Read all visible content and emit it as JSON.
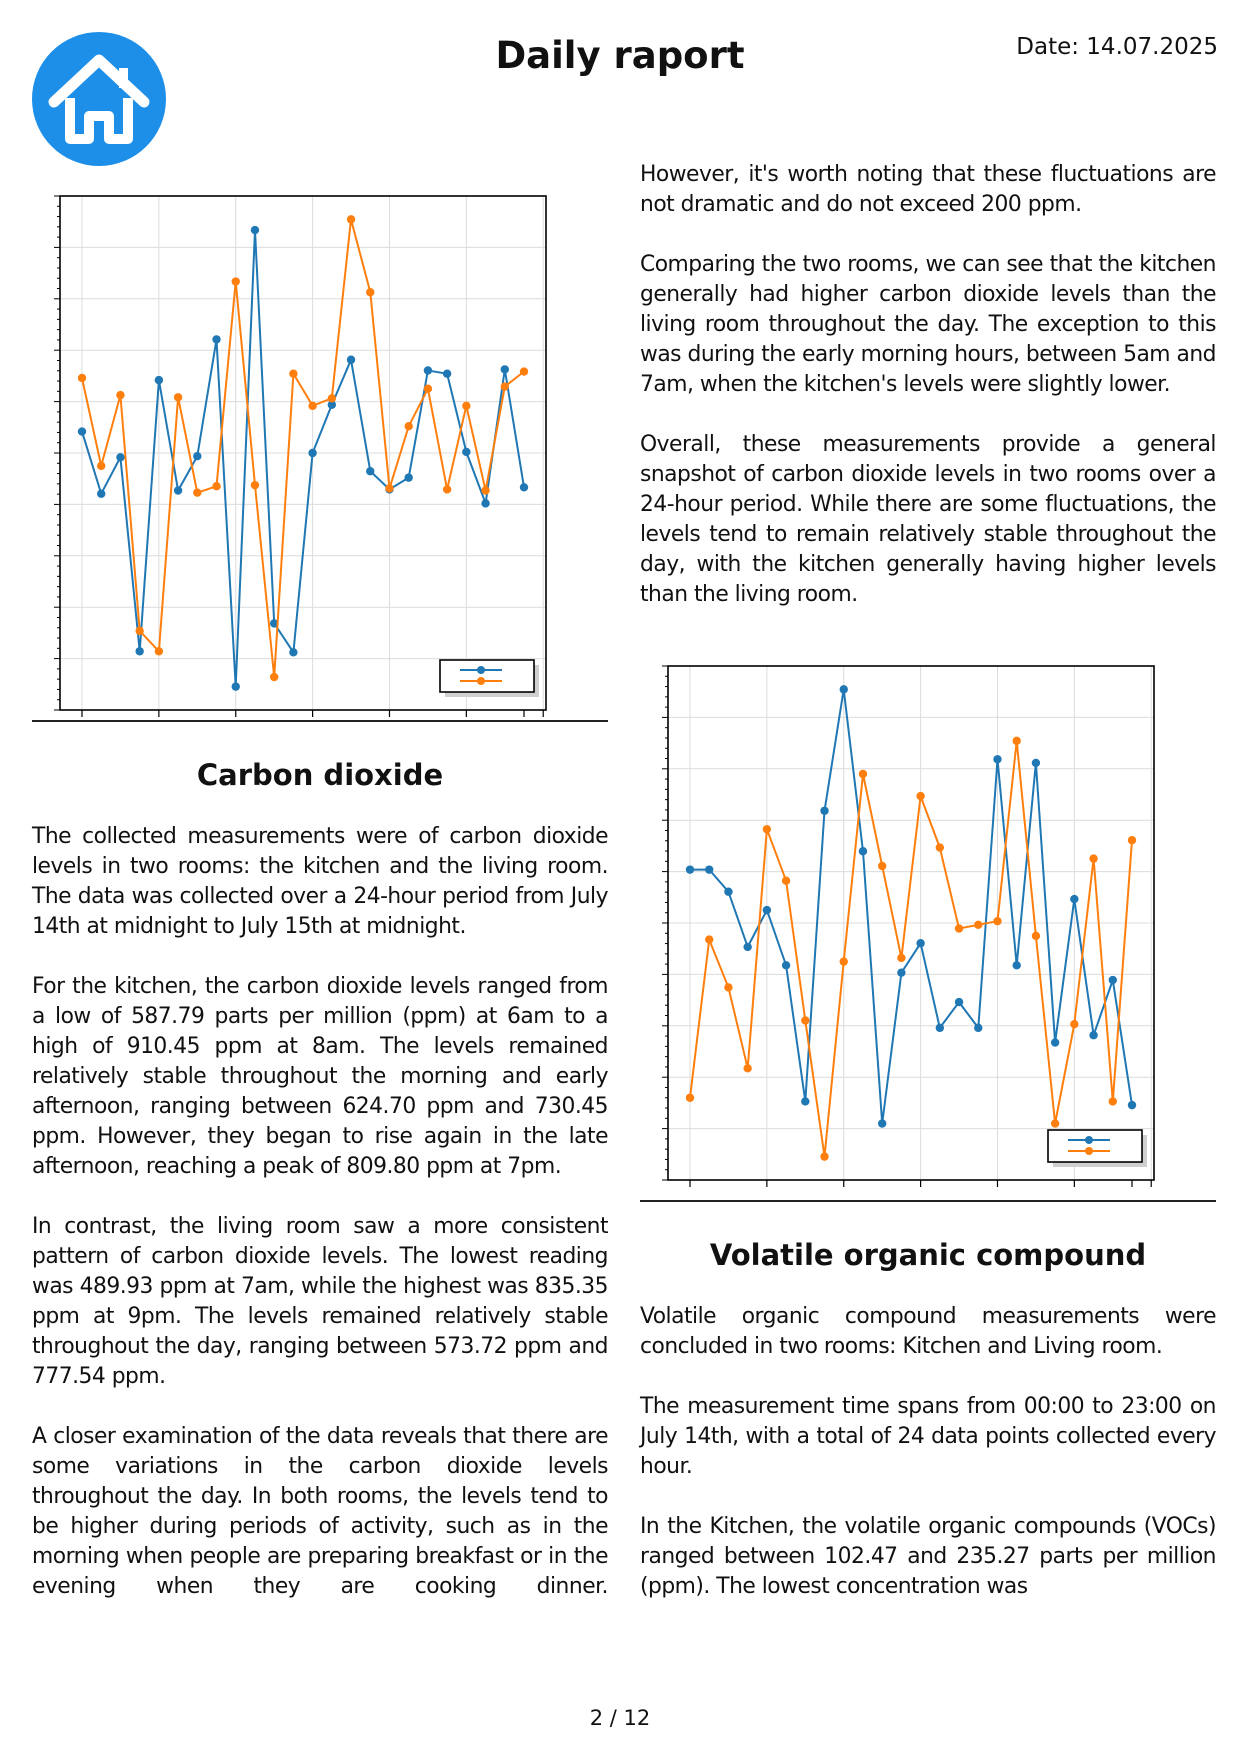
{
  "header": {
    "logo_icon": "house-icon",
    "logo_color": "#1e8fe8",
    "title": "Daily raport",
    "date": "Date: 14.07.2025"
  },
  "co2": {
    "heading": "Carbon dioxide",
    "paragraphs": [
      "The collected measurements were of carbon dioxide levels in two rooms: the kitchen and the living room. The data was collected over a 24-hour period from July 14th at midnight to July 15th at midnight.",
      "For the kitchen, the carbon dioxide levels ranged from a low of 587.79 parts per million (ppm) at 6am to a high of 910.45 ppm at 8am. The levels remained relatively stable throughout the morning and early afternoon, ranging between 624.70 ppm and 730.45 ppm. However, they began to rise again in the late afternoon, reaching a peak of 809.80 ppm at 7pm.",
      "In contrast, the living room saw a more consistent pattern of carbon dioxide levels. The lowest reading was 489.93 ppm at 7am, while the highest was 835.35 ppm at 9pm. The levels remained relatively stable throughout the day, ranging between 573.72 ppm and 777.54 ppm.",
      "A closer examination of the data reveals that there are some variations in the carbon dioxide levels throughout the day. In both rooms, the levels tend to be higher during periods of activity, such as in the morning when people are preparing breakfast or in the evening when they are cooking dinner."
    ],
    "continued_paragraphs": [
      "However, it's worth noting that these fluctuations are not dramatic and do not exceed 200 ppm.",
      "Comparing the two rooms, we can see that the kitchen generally had higher carbon dioxide levels than the living room throughout the day. The exception to this was during the early morning hours, between 5am and 7am, when the kitchen's levels were slightly lower.",
      "Overall, these measurements provide a general snapshot of carbon dioxide levels in two rooms over a 24-hour period. While there are some fluctuations, the levels tend to remain relatively stable throughout the day, with the kitchen generally having higher levels than the living room."
    ]
  },
  "voc": {
    "heading": "Volatile organic compound",
    "paragraphs": [
      "Volatile organic compound measurements were concluded in two rooms: Kitchen and Living room.",
      "The measurement time spans from 00:00 to 23:00 on July 14th, with a total of 24 data points collected every hour.",
      "In the Kitchen, the volatile organic compounds (VOCs) ranged between 102.47 and 235.27 parts per million (ppm). The lowest concentration was"
    ]
  },
  "footer": {
    "page": "2 / 12"
  },
  "chart_data": [
    {
      "type": "line",
      "grid": true,
      "legend_placement": "bottom-right",
      "series": [
        {
          "color": "#1f77b4",
          "values": [
            700,
            642,
            676,
            495,
            748,
            645,
            677,
            786,
            462,
            888,
            521,
            494,
            680,
            725,
            767,
            663,
            646,
            657,
            757,
            754,
            681,
            633,
            758,
            648
          ]
        },
        {
          "color": "#ff7f0e",
          "values": [
            750,
            668,
            734,
            514,
            495,
            732,
            643,
            649,
            840,
            650,
            471,
            754,
            724,
            731,
            898,
            830,
            647,
            705,
            740,
            646,
            724,
            645,
            742,
            756
          ]
        }
      ]
    },
    {
      "type": "line",
      "grid": true,
      "legend_placement": "bottom-right",
      "series": [
        {
          "color": "#1f77b4",
          "values": [
            183,
            183,
            177,
            162,
            172,
            157,
            120,
            199,
            232,
            188,
            114,
            155,
            163,
            140,
            147,
            140,
            213,
            157,
            212,
            136,
            175,
            138,
            153,
            119
          ]
        },
        {
          "color": "#ff7f0e",
          "values": [
            121,
            164,
            151,
            129,
            194,
            180,
            142,
            105,
            158,
            209,
            184,
            159,
            203,
            189,
            167,
            168,
            169,
            218,
            165,
            114,
            141,
            186,
            120,
            191
          ]
        }
      ]
    }
  ]
}
